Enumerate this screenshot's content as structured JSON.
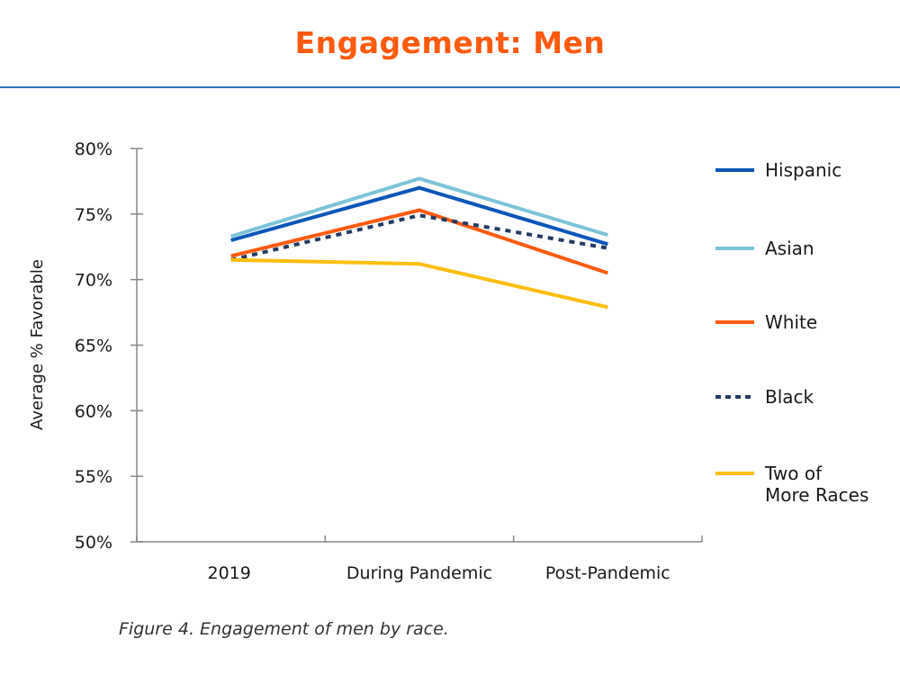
{
  "header": {
    "title": "Engagement: Men"
  },
  "caption": "Figure 4. Engagement of men by race.",
  "chart_data": {
    "type": "line",
    "title": "Engagement: Men",
    "xlabel": "",
    "ylabel": "Average % Favorable",
    "categories": [
      "2019",
      "During Pandemic",
      "Post-Pandemic"
    ],
    "ylim": [
      50,
      80
    ],
    "yticks": [
      50,
      55,
      60,
      65,
      70,
      75,
      80
    ],
    "ytick_labels": [
      "50%",
      "55%",
      "60%",
      "65%",
      "70%",
      "75%",
      "80%"
    ],
    "grid": false,
    "legend_position": "right",
    "series": [
      {
        "name": "Hispanic",
        "color": "#0b55b8",
        "dashed": false,
        "values": [
          73.0,
          77.0,
          72.7
        ]
      },
      {
        "name": "Asian",
        "color": "#7cc4d8",
        "dashed": false,
        "values": [
          73.3,
          77.7,
          73.4
        ]
      },
      {
        "name": "White",
        "color": "#fe5a10",
        "dashed": false,
        "values": [
          71.8,
          75.3,
          70.5
        ]
      },
      {
        "name": "Black",
        "color": "#243a63",
        "dashed": true,
        "values": [
          71.5,
          74.9,
          72.4
        ]
      },
      {
        "name": "Two of More Races",
        "color": "#fbbf0e",
        "dashed": false,
        "values": [
          71.5,
          71.2,
          67.9
        ]
      }
    ],
    "legend_labels": [
      [
        "Hispanic"
      ],
      [
        "Asian"
      ],
      [
        "White"
      ],
      [
        "Black"
      ],
      [
        "Two of",
        "More Races"
      ]
    ]
  }
}
